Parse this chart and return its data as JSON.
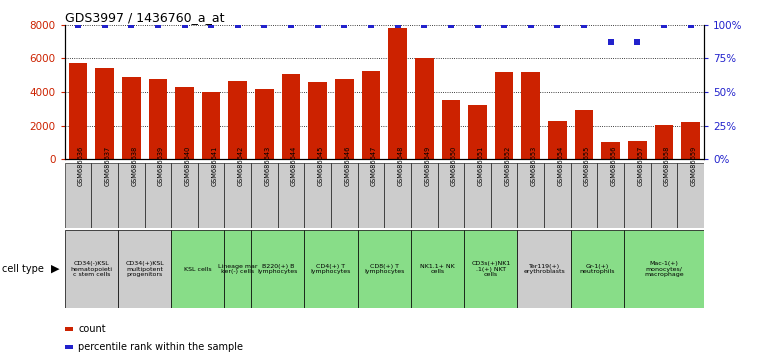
{
  "title": "GDS3997 / 1436760_a_at",
  "gsm_labels": [
    "GSM686636",
    "GSM686637",
    "GSM686638",
    "GSM686639",
    "GSM686640",
    "GSM686641",
    "GSM686642",
    "GSM686643",
    "GSM686644",
    "GSM686645",
    "GSM686646",
    "GSM686647",
    "GSM686648",
    "GSM686649",
    "GSM686650",
    "GSM686651",
    "GSM686652",
    "GSM686653",
    "GSM686654",
    "GSM686655",
    "GSM686656",
    "GSM686657",
    "GSM686658",
    "GSM686659"
  ],
  "counts": [
    5750,
    5450,
    4900,
    4800,
    4300,
    4000,
    4650,
    4200,
    5100,
    4600,
    4800,
    5250,
    7800,
    6050,
    3550,
    3250,
    5200,
    5200,
    2300,
    2950,
    1000,
    1100,
    2050,
    2200
  ],
  "percentile_ranks": [
    100,
    100,
    100,
    100,
    100,
    100,
    100,
    100,
    100,
    100,
    100,
    100,
    100,
    100,
    100,
    100,
    100,
    100,
    100,
    100,
    87,
    87,
    100,
    100
  ],
  "cell_type_groups": [
    {
      "label": "CD34(-)KSL\nhematopoieti\nc stem cells",
      "span": [
        0,
        2
      ],
      "color": "#cccccc"
    },
    {
      "label": "CD34(+)KSL\nmultipotent\nprogenitors",
      "span": [
        2,
        4
      ],
      "color": "#cccccc"
    },
    {
      "label": "KSL cells",
      "span": [
        4,
        6
      ],
      "color": "#88dd88"
    },
    {
      "label": "Lineage mar\nker(-) cells",
      "span": [
        6,
        7
      ],
      "color": "#88dd88"
    },
    {
      "label": "B220(+) B\nlymphocytes",
      "span": [
        7,
        9
      ],
      "color": "#88dd88"
    },
    {
      "label": "CD4(+) T\nlymphocytes",
      "span": [
        9,
        11
      ],
      "color": "#88dd88"
    },
    {
      "label": "CD8(+) T\nlymphocytes",
      "span": [
        11,
        13
      ],
      "color": "#88dd88"
    },
    {
      "label": "NK1.1+ NK\ncells",
      "span": [
        13,
        15
      ],
      "color": "#88dd88"
    },
    {
      "label": "CD3s(+)NK1\n.1(+) NKT\ncells",
      "span": [
        15,
        17
      ],
      "color": "#88dd88"
    },
    {
      "label": "Ter119(+)\nerythroblasts",
      "span": [
        17,
        19
      ],
      "color": "#cccccc"
    },
    {
      "label": "Gr-1(+)\nneutrophils",
      "span": [
        19,
        21
      ],
      "color": "#88dd88"
    },
    {
      "label": "Mac-1(+)\nmonocytes/\nmacrophage",
      "span": [
        21,
        24
      ],
      "color": "#88dd88"
    }
  ],
  "bar_color": "#cc2200",
  "dot_color": "#2222cc",
  "ylim_left": [
    0,
    8000
  ],
  "ylim_right": [
    0,
    100
  ],
  "yticks_left": [
    0,
    2000,
    4000,
    6000,
    8000
  ],
  "yticks_right": [
    0,
    25,
    50,
    75,
    100
  ],
  "gsm_row_color": "#cccccc",
  "bg_color": "#ffffff"
}
